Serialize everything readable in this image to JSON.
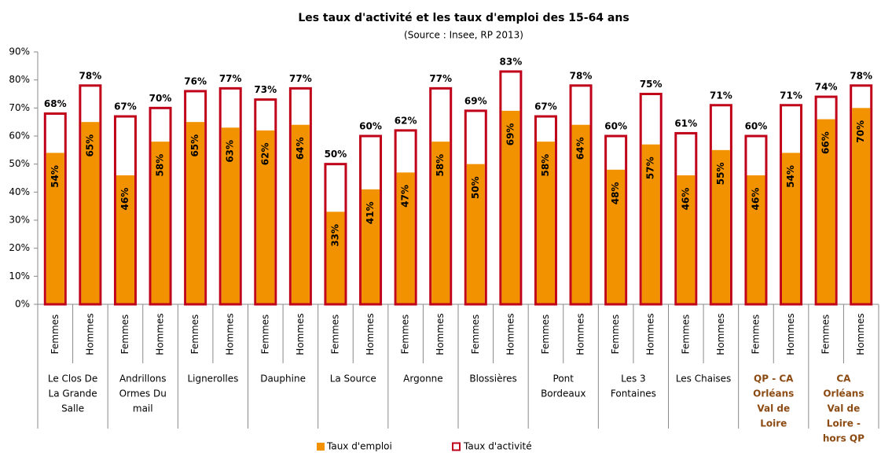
{
  "chart_data": {
    "type": "bar",
    "title": "Les taux d'activité et les taux d'emploi des 15-64 ans",
    "subtitle": "(Source : Insee, RP 2013)",
    "categories": [
      "Femmes",
      "Hommes",
      "Femmes",
      "Hommes",
      "Femmes",
      "Hommes",
      "Femmes",
      "Hommes",
      "Femmes",
      "Hommes",
      "Femmes",
      "Hommes",
      "Femmes",
      "Hommes",
      "Femmes",
      "Hommes",
      "Femmes",
      "Hommes",
      "Femmes",
      "Hommes",
      "Femmes",
      "Hommes",
      "Femmes",
      "Hommes"
    ],
    "groups": [
      [
        "Le Clos De",
        "La Grande",
        "Salle"
      ],
      [
        "Andrillons",
        "Ormes Du",
        "mail"
      ],
      [
        "Lignerolles"
      ],
      [
        "Dauphine"
      ],
      [
        "La Source"
      ],
      [
        "Argonne"
      ],
      [
        "Blossières"
      ],
      [
        "Pont",
        "Bordeaux"
      ],
      [
        "Les 3",
        "Fontaines"
      ],
      [
        "Les Chaises"
      ],
      [
        "QP - CA",
        "Orléans",
        "Val de",
        "Loire"
      ],
      [
        "CA",
        "Orléans",
        "Val de",
        "Loire -",
        "hors QP"
      ]
    ],
    "group_colors": [
      "#000000",
      "#000000",
      "#000000",
      "#000000",
      "#000000",
      "#000000",
      "#000000",
      "#000000",
      "#000000",
      "#000000",
      "#8b4a12",
      "#8b4a12"
    ],
    "series": [
      {
        "name": "Taux d'emploi",
        "color": "#f39200",
        "values": [
          54,
          65,
          46,
          58,
          65,
          63,
          62,
          64,
          33,
          41,
          47,
          58,
          50,
          69,
          58,
          64,
          48,
          57,
          46,
          55,
          46,
          54,
          66,
          70
        ],
        "value_labels": [
          "54%",
          "65%",
          "46%",
          "58%",
          "65%",
          "63%",
          "62%",
          "64%",
          "33%",
          "41%",
          "47%",
          "58%",
          "50%",
          "69%",
          "58%",
          "64%",
          "48%",
          "57%",
          "46%",
          "55%",
          "46%",
          "54%",
          "66%",
          "70%"
        ]
      },
      {
        "name": "Taux d'activité",
        "color": "#c00018",
        "values": [
          68,
          78,
          67,
          70,
          76,
          77,
          73,
          77,
          50,
          60,
          62,
          77,
          69,
          83,
          67,
          78,
          60,
          75,
          61,
          71,
          60,
          71,
          74,
          78
        ],
        "value_labels": [
          "68%",
          "78%",
          "67%",
          "70%",
          "76%",
          "77%",
          "73%",
          "77%",
          "50%",
          "60%",
          "62%",
          "77%",
          "69%",
          "83%",
          "67%",
          "78%",
          "60%",
          "75%",
          "61%",
          "71%",
          "60%",
          "71%",
          "74%",
          "78%"
        ]
      }
    ],
    "ylim": [
      0,
      90
    ],
    "yticks": [
      {
        "value": 0,
        "label": "0%"
      },
      {
        "value": 10,
        "label": "10%"
      },
      {
        "value": 20,
        "label": "20%"
      },
      {
        "value": 30,
        "label": "30%"
      },
      {
        "value": 40,
        "label": "40%"
      },
      {
        "value": 50,
        "label": "50%"
      },
      {
        "value": 60,
        "label": "60%"
      },
      {
        "value": 70,
        "label": "70%"
      },
      {
        "value": 80,
        "label": "80%"
      },
      {
        "value": 90,
        "label": "90%"
      }
    ]
  }
}
